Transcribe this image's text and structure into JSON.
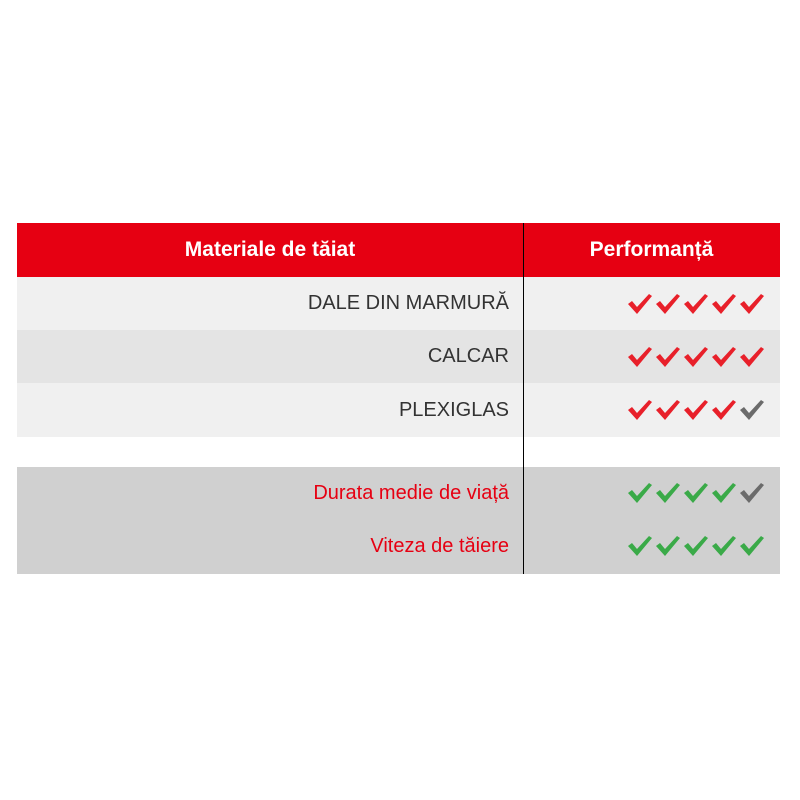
{
  "header": {
    "col1": "Materiale de tăiat",
    "col2": "Performanță"
  },
  "materials": [
    {
      "label": "DALE DIN MARMURĂ",
      "rating": 5,
      "max": 5
    },
    {
      "label": "CALCAR",
      "rating": 5,
      "max": 5
    },
    {
      "label": "PLEXIGLAS",
      "rating": 4,
      "max": 5
    }
  ],
  "properties": [
    {
      "label": "Durata medie de viață",
      "rating": 4,
      "max": 5
    },
    {
      "label": "Viteza de tăiere",
      "rating": 5,
      "max": 5
    }
  ],
  "colors": {
    "brand_red": "#e60012",
    "check_red": "#e8202a",
    "check_green": "#3aaa48",
    "check_gray": "#6b6b6b"
  }
}
